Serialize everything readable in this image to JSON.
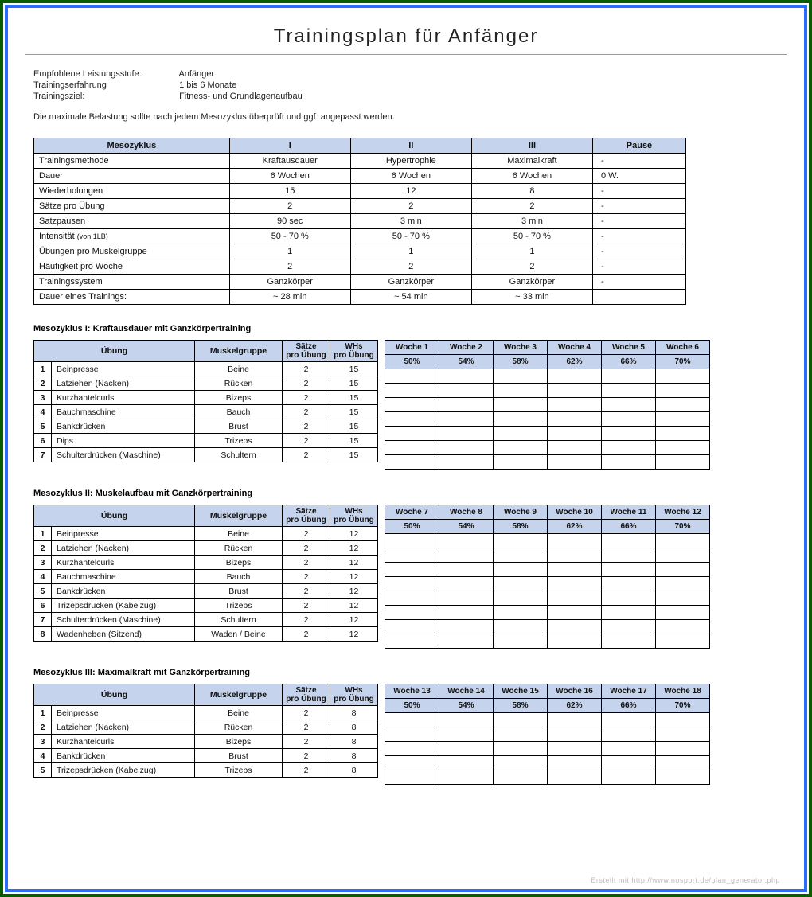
{
  "colors": {
    "outer_border": "#0a5c00",
    "inner_border": "#2a6cff",
    "header_bg": "#c5d4ec",
    "cell_border": "#000000",
    "text": "#222222",
    "footer": "#bbbbbb"
  },
  "title": "Trainingsplan für Anfänger",
  "meta": {
    "level_label": "Empfohlene Leistungsstufe:",
    "level_value": "Anfänger",
    "exp_label": "Trainingserfahrung",
    "exp_value": "1 bis 6 Monate",
    "goal_label": "Trainingsziel:",
    "goal_value": "Fitness- und Grundlagenaufbau"
  },
  "note": "Die maximale Belastung sollte nach jedem Mesozyklus überprüft und ggf. angepasst werden.",
  "meso": {
    "header": [
      "Mesozyklus",
      "I",
      "II",
      "III",
      "Pause"
    ],
    "rows": [
      {
        "label": "Trainingsmethode",
        "v": [
          "Kraftausdauer",
          "Hypertrophie",
          "Maximalkraft",
          "-"
        ]
      },
      {
        "label": "Dauer",
        "v": [
          "6 Wochen",
          "6 Wochen",
          "6 Wochen",
          "0 W."
        ]
      },
      {
        "label": "Wiederholungen",
        "v": [
          "15",
          "12",
          "8",
          "-"
        ]
      },
      {
        "label": "Sätze pro Übung",
        "v": [
          "2",
          "2",
          "2",
          "-"
        ]
      },
      {
        "label": "Satzpausen",
        "v": [
          "90 sec",
          "3 min",
          "3 min",
          "-"
        ]
      },
      {
        "label": "Intensität",
        "sublabel": "(von 1LB)",
        "v": [
          "50 - 70 %",
          "50 - 70 %",
          "50 - 70 %",
          "-"
        ]
      },
      {
        "label": "Übungen pro Muskelgruppe",
        "v": [
          "1",
          "1",
          "1",
          "-"
        ]
      },
      {
        "label": "Häufigkeit pro Woche",
        "v": [
          "2",
          "2",
          "2",
          "-"
        ]
      },
      {
        "label": "Trainingssystem",
        "v": [
          "Ganzkörper",
          "Ganzkörper",
          "Ganzkörper",
          "-"
        ]
      },
      {
        "label": "Dauer eines Trainings:",
        "v": [
          "~ 28 min",
          "~ 54 min",
          "~ 33 min",
          ""
        ]
      }
    ]
  },
  "ex_headers": {
    "uebung": "Übung",
    "muskelgruppe": "Muskelgruppe",
    "saetze": "Sätze\npro Übung",
    "whs": "WHs\npro Übung"
  },
  "percent_row": [
    "50%",
    "54%",
    "58%",
    "62%",
    "66%",
    "70%"
  ],
  "blocks": [
    {
      "title": "Mesozyklus I: Kraftausdauer mit Ganzkörpertraining",
      "weeks": [
        "Woche 1",
        "Woche 2",
        "Woche 3",
        "Woche 4",
        "Woche 5",
        "Woche 6"
      ],
      "rows": [
        {
          "n": "1",
          "name": "Beinpresse",
          "mg": "Beine",
          "sets": "2",
          "reps": "15"
        },
        {
          "n": "2",
          "name": "Latziehen (Nacken)",
          "mg": "Rücken",
          "sets": "2",
          "reps": "15"
        },
        {
          "n": "3",
          "name": "Kurzhantelcurls",
          "mg": "Bizeps",
          "sets": "2",
          "reps": "15"
        },
        {
          "n": "4",
          "name": "Bauchmaschine",
          "mg": "Bauch",
          "sets": "2",
          "reps": "15"
        },
        {
          "n": "5",
          "name": "Bankdrücken",
          "mg": "Brust",
          "sets": "2",
          "reps": "15"
        },
        {
          "n": "6",
          "name": "Dips",
          "mg": "Trizeps",
          "sets": "2",
          "reps": "15"
        },
        {
          "n": "7",
          "name": "Schulterdrücken (Maschine)",
          "mg": "Schultern",
          "sets": "2",
          "reps": "15"
        }
      ]
    },
    {
      "title": "Mesozyklus II: Muskelaufbau mit Ganzkörpertraining",
      "weeks": [
        "Woche 7",
        "Woche 8",
        "Woche 9",
        "Woche 10",
        "Woche 11",
        "Woche 12"
      ],
      "rows": [
        {
          "n": "1",
          "name": "Beinpresse",
          "mg": "Beine",
          "sets": "2",
          "reps": "12"
        },
        {
          "n": "2",
          "name": "Latziehen (Nacken)",
          "mg": "Rücken",
          "sets": "2",
          "reps": "12"
        },
        {
          "n": "3",
          "name": "Kurzhantelcurls",
          "mg": "Bizeps",
          "sets": "2",
          "reps": "12"
        },
        {
          "n": "4",
          "name": "Bauchmaschine",
          "mg": "Bauch",
          "sets": "2",
          "reps": "12"
        },
        {
          "n": "5",
          "name": "Bankdrücken",
          "mg": "Brust",
          "sets": "2",
          "reps": "12"
        },
        {
          "n": "6",
          "name": "Trizepsdrücken (Kabelzug)",
          "mg": "Trizeps",
          "sets": "2",
          "reps": "12"
        },
        {
          "n": "7",
          "name": "Schulterdrücken (Maschine)",
          "mg": "Schultern",
          "sets": "2",
          "reps": "12"
        },
        {
          "n": "8",
          "name": "Wadenheben (Sitzend)",
          "mg": "Waden / Beine",
          "sets": "2",
          "reps": "12"
        }
      ]
    },
    {
      "title": "Mesozyklus III: Maximalkraft mit Ganzkörpertraining",
      "weeks": [
        "Woche 13",
        "Woche 14",
        "Woche 15",
        "Woche 16",
        "Woche 17",
        "Woche 18"
      ],
      "rows": [
        {
          "n": "1",
          "name": "Beinpresse",
          "mg": "Beine",
          "sets": "2",
          "reps": "8"
        },
        {
          "n": "2",
          "name": "Latziehen (Nacken)",
          "mg": "Rücken",
          "sets": "2",
          "reps": "8"
        },
        {
          "n": "3",
          "name": "Kurzhantelcurls",
          "mg": "Bizeps",
          "sets": "2",
          "reps": "8"
        },
        {
          "n": "4",
          "name": "Bankdrücken",
          "mg": "Brust",
          "sets": "2",
          "reps": "8"
        },
        {
          "n": "5",
          "name": "Trizepsdrücken (Kabelzug)",
          "mg": "Trizeps",
          "sets": "2",
          "reps": "8"
        }
      ]
    }
  ],
  "footer": "Erstellt mit http://www.nosport.de/plan_generator.php"
}
